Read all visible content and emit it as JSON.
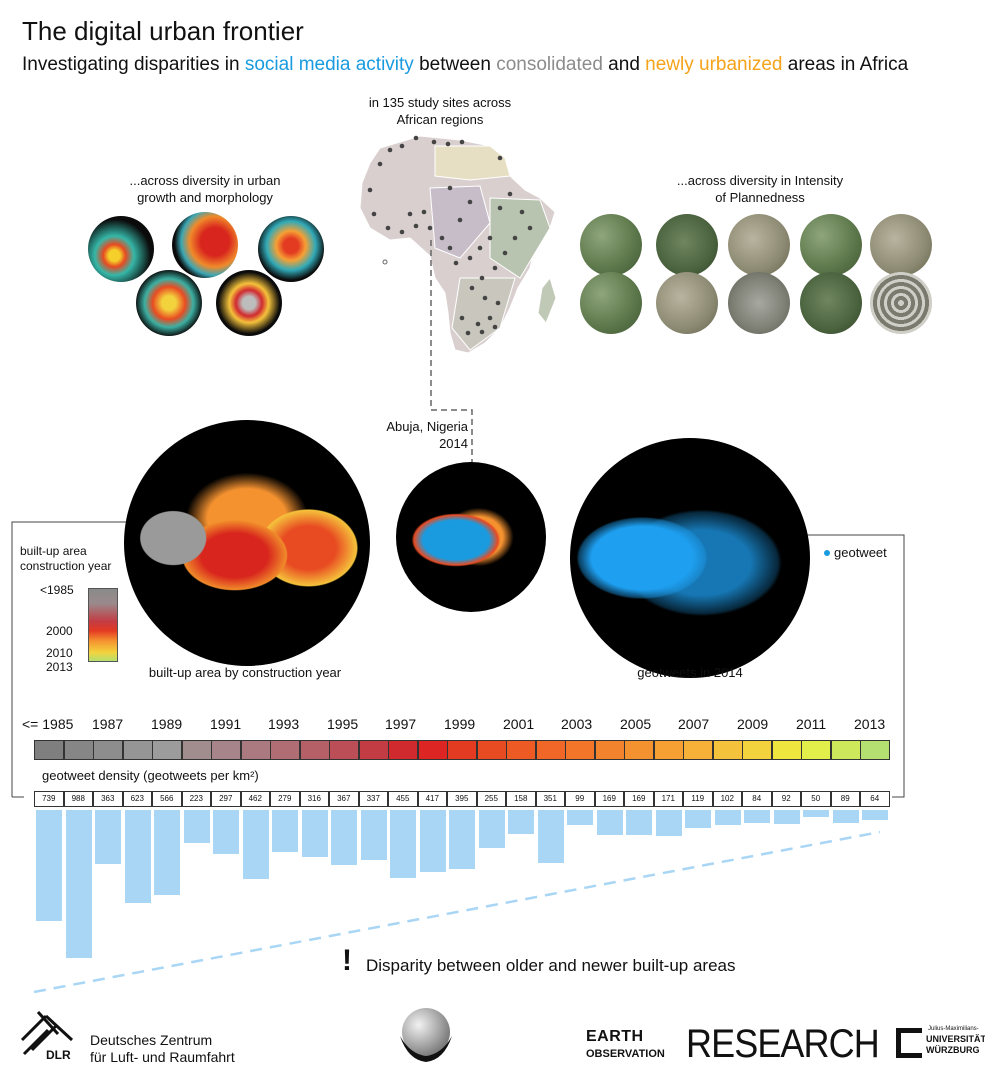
{
  "title": "The digital urban frontier",
  "subtitle": {
    "part1": "Investigating disparities in ",
    "highlight1": "social media activity",
    "part2": " between ",
    "highlight2": "consolidated",
    "part3": " and ",
    "highlight3": "newly urbanized",
    "part4": " areas in Africa"
  },
  "map_caption": "in 135 study sites across African regions",
  "morph_caption": "...across diversity in urban growth and morphology",
  "planned_caption": "...across diversity in Intensity of Plannedness",
  "abuja_caption_line1": "Abuja, Nigeria",
  "abuja_caption_line2": "2014",
  "builtup_caption": "built-up area by construction year",
  "geotweets_caption": "geotweets in 2014",
  "geotweet_legend": "geotweet",
  "construction_legend": {
    "title_line1": "built-up area",
    "title_line2": "construction year",
    "labels": [
      "<1985",
      "2000",
      "2010",
      "2013"
    ]
  },
  "density_title": "geotweet density (geotweets per km²)",
  "disparity_text": "Disparity between older and newer built-up areas",
  "exclamation": "!",
  "logos": {
    "dlr_name_line1": "Deutsches Zentrum",
    "dlr_name_line2": "für Luft- und Raumfahrt",
    "dlr_abbr": "DLR",
    "eo_earth": "EARTH",
    "eo_observation": "OBSERVATION",
    "eo_research": "RESEARCH",
    "uni_small": "Julius-Maximilians-",
    "uni_line1": "UNIVERSITÄT",
    "uni_line2": "WÜRZBURG"
  },
  "chart_data": {
    "type": "bar",
    "year_labels": [
      "<= 1985",
      "1987",
      "1989",
      "1991",
      "1993",
      "1995",
      "1997",
      "1999",
      "2001",
      "2003",
      "2005",
      "2007",
      "2009",
      "2011",
      "2013"
    ],
    "values": [
      739,
      988,
      363,
      623,
      566,
      223,
      297,
      462,
      279,
      316,
      367,
      337,
      455,
      417,
      395,
      255,
      158,
      351,
      99,
      169,
      169,
      171,
      119,
      102,
      84,
      92,
      50,
      89,
      64
    ],
    "colors": [
      "#7f7f7f",
      "#868686",
      "#8d8d8d",
      "#959595",
      "#9c9c9c",
      "#a18c8e",
      "#a6848a",
      "#ab7a80",
      "#b06d74",
      "#b55f66",
      "#bb4e56",
      "#c43c43",
      "#d02a2f",
      "#dd2524",
      "#e33a22",
      "#e84b22",
      "#ed5a24",
      "#f06727",
      "#f3752a",
      "#f4832d",
      "#f59230",
      "#f6a034",
      "#f7b038",
      "#f5c23b",
      "#f3d33d",
      "#eee53f",
      "#e2ee4a",
      "#cde85a",
      "#b3e070"
    ],
    "bar_color": "#a9d6f5"
  }
}
